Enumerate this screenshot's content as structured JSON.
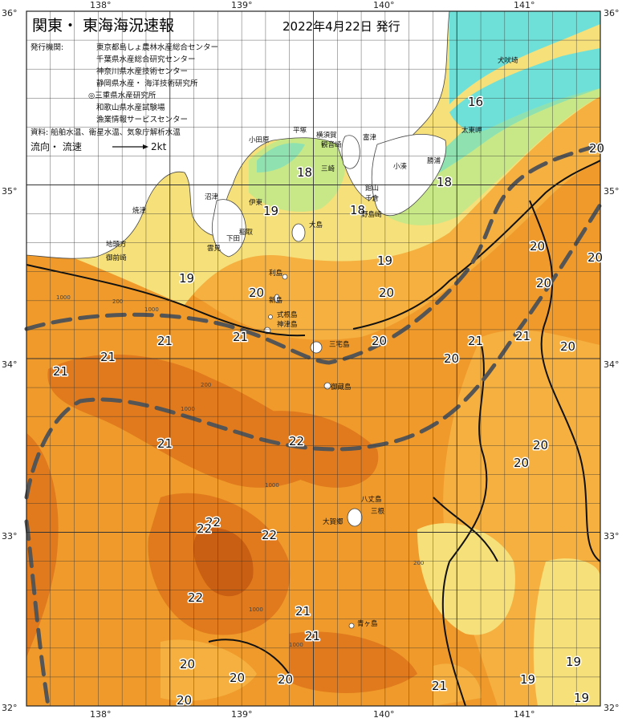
{
  "title": {
    "main": "関東・ 東海海況速報",
    "date": "2022年4月22日 発行"
  },
  "info": {
    "issuer_label": "発行機関:",
    "issuers": [
      "東京都島しょ農林水産総合センター",
      "千葉県水産総合研究センター",
      "神奈川県水産技術センター",
      "静岡県水産・ 海洋技術研究所",
      "◎三重県水産研究所",
      "和歌山県水産試験場",
      "漁業情報サービスセンター"
    ],
    "source": "資料: 船舶水温、衛星水温、気象庁解析水温",
    "legend_label": "流向・ 流速",
    "legend_value": "2kt"
  },
  "axes": {
    "longitude_ticks": [
      "138°",
      "139°",
      "140°",
      "141°"
    ],
    "latitude_ticks": [
      "36°",
      "35°",
      "34°",
      "33°",
      "32°"
    ]
  },
  "colors": {
    "t16": "#6fe0d8",
    "t17": "#8fe2b0",
    "t18": "#c8e888",
    "t19": "#f6e07a",
    "t20": "#f5b040",
    "t21": "#ef9a2a",
    "t22": "#e07a1c",
    "t23": "#c85f12",
    "land": "#ffffff",
    "kuroshio_axis": "#555555"
  },
  "temperature_labels": [
    {
      "text": "16"
    },
    {
      "text": "20"
    },
    {
      "text": "18"
    },
    {
      "text": "18"
    },
    {
      "text": "19"
    },
    {
      "text": "18"
    },
    {
      "text": "20"
    },
    {
      "text": "19"
    },
    {
      "text": "19"
    },
    {
      "text": "20"
    },
    {
      "text": "20"
    },
    {
      "text": "20"
    },
    {
      "text": "21"
    },
    {
      "text": "21"
    },
    {
      "text": "21"
    },
    {
      "text": "20"
    },
    {
      "text": "20"
    },
    {
      "text": "21"
    },
    {
      "text": "20"
    },
    {
      "text": "21"
    },
    {
      "text": "21"
    },
    {
      "text": "22"
    },
    {
      "text": "21"
    },
    {
      "text": "20"
    },
    {
      "text": "20"
    },
    {
      "text": "22"
    },
    {
      "text": "22"
    },
    {
      "text": "22"
    },
    {
      "text": "22"
    },
    {
      "text": "21"
    },
    {
      "text": "21"
    },
    {
      "text": "20"
    },
    {
      "text": "20"
    },
    {
      "text": "20"
    },
    {
      "text": "21"
    },
    {
      "text": "19"
    },
    {
      "text": "19"
    },
    {
      "text": "20"
    },
    {
      "text": "19"
    }
  ],
  "place_labels": [
    {
      "text": "犬吠埼"
    },
    {
      "text": "太東岬"
    },
    {
      "text": "勝浦"
    },
    {
      "text": "小湊"
    },
    {
      "text": "館山"
    },
    {
      "text": "千倉"
    },
    {
      "text": "野島崎"
    },
    {
      "text": "富津"
    },
    {
      "text": "平塚"
    },
    {
      "text": "横須賀"
    },
    {
      "text": "観音崎"
    },
    {
      "text": "三崎"
    },
    {
      "text": "小田原"
    },
    {
      "text": "沼津"
    },
    {
      "text": "焼津"
    },
    {
      "text": "伊東"
    },
    {
      "text": "稲取"
    },
    {
      "text": "下田"
    },
    {
      "text": "雲見"
    },
    {
      "text": "地頭方"
    },
    {
      "text": "御前崎"
    },
    {
      "text": "利島"
    },
    {
      "text": "新島"
    },
    {
      "text": "式根島"
    },
    {
      "text": "神津島"
    },
    {
      "text": "三宅島"
    },
    {
      "text": "御蔵島"
    },
    {
      "text": "八丈島"
    },
    {
      "text": "三根"
    },
    {
      "text": "大賀郷"
    },
    {
      "text": "青ヶ島"
    },
    {
      "text": "大島"
    }
  ],
  "depth_labels": [
    {
      "text": "1000"
    },
    {
      "text": "200"
    },
    {
      "text": "1000"
    },
    {
      "text": "200"
    },
    {
      "text": "1000"
    },
    {
      "text": "1000"
    },
    {
      "text": "1000"
    },
    {
      "text": "1000"
    },
    {
      "text": "200"
    }
  ]
}
